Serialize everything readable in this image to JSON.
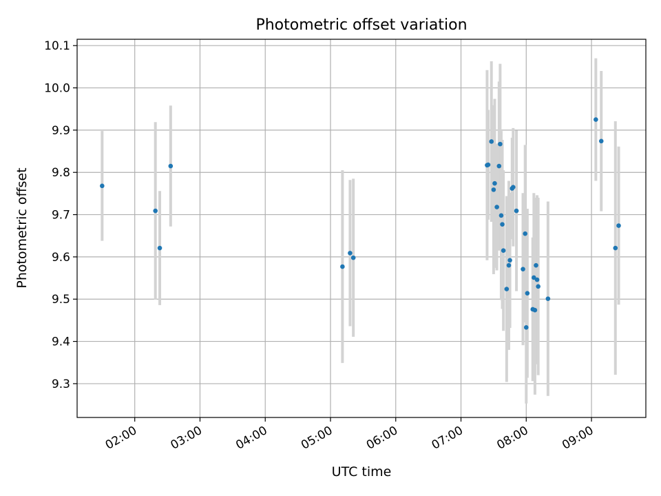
{
  "chart_data": {
    "type": "scatter",
    "title": "Photometric offset variation",
    "xlabel": "UTC time",
    "ylabel": "Photometric offset",
    "xlim": [
      "01:07",
      "09:50"
    ],
    "ylim": [
      9.22,
      10.115
    ],
    "x_ticks": [
      "02:00",
      "03:00",
      "04:00",
      "05:00",
      "06:00",
      "07:00",
      "08:00",
      "09:00"
    ],
    "y_ticks": [
      9.3,
      9.4,
      9.5,
      9.6,
      9.7,
      9.8,
      9.9,
      10.0,
      10.1
    ],
    "grid": true,
    "marker_color": "#1f77b4",
    "errorbar_color": "#d3d3d3",
    "points": [
      {
        "x": "01:30",
        "y": 9.768,
        "err": 0.13
      },
      {
        "x": "02:19",
        "y": 9.709,
        "err": 0.21
      },
      {
        "x": "02:23",
        "y": 9.621,
        "err": 0.135
      },
      {
        "x": "02:33",
        "y": 9.815,
        "err": 0.143
      },
      {
        "x": "05:11",
        "y": 9.577,
        "err": 0.228
      },
      {
        "x": "05:18",
        "y": 9.609,
        "err": 0.173
      },
      {
        "x": "05:21",
        "y": 9.598,
        "err": 0.187
      },
      {
        "x": "07:24",
        "y": 9.817,
        "err": 0.225
      },
      {
        "x": "07:25",
        "y": 9.818,
        "err": 0.13
      },
      {
        "x": "07:28",
        "y": 9.873,
        "err": 0.19
      },
      {
        "x": "07:30",
        "y": 9.759,
        "err": 0.2
      },
      {
        "x": "07:31",
        "y": 9.774,
        "err": 0.2
      },
      {
        "x": "07:33",
        "y": 9.718,
        "err": 0.15
      },
      {
        "x": "07:35",
        "y": 9.815,
        "err": 0.2
      },
      {
        "x": "07:36",
        "y": 9.867,
        "err": 0.19
      },
      {
        "x": "07:37",
        "y": 9.698,
        "err": 0.2
      },
      {
        "x": "07:38",
        "y": 9.677,
        "err": 0.2
      },
      {
        "x": "07:39",
        "y": 9.615,
        "err": 0.19
      },
      {
        "x": "07:42",
        "y": 9.524,
        "err": 0.22
      },
      {
        "x": "07:44",
        "y": 9.58,
        "err": 0.2
      },
      {
        "x": "07:45",
        "y": 9.592,
        "err": 0.16
      },
      {
        "x": "07:47",
        "y": 9.762,
        "err": 0.12
      },
      {
        "x": "07:48",
        "y": 9.765,
        "err": 0.14
      },
      {
        "x": "07:51",
        "y": 9.709,
        "err": 0.19
      },
      {
        "x": "07:57",
        "y": 9.571,
        "err": 0.18
      },
      {
        "x": "07:59",
        "y": 9.655,
        "err": 0.21
      },
      {
        "x": "08:00",
        "y": 9.433,
        "err": 0.18
      },
      {
        "x": "08:01",
        "y": 9.514,
        "err": 0.2
      },
      {
        "x": "08:06",
        "y": 9.476,
        "err": 0.17
      },
      {
        "x": "08:07",
        "y": 9.551,
        "err": 0.2
      },
      {
        "x": "08:08",
        "y": 9.474,
        "err": 0.2
      },
      {
        "x": "08:09",
        "y": 9.58,
        "err": 0.16
      },
      {
        "x": "08:10",
        "y": 9.546,
        "err": 0.2
      },
      {
        "x": "08:11",
        "y": 9.53,
        "err": 0.21
      },
      {
        "x": "08:20",
        "y": 9.501,
        "err": 0.23
      },
      {
        "x": "09:04",
        "y": 9.925,
        "err": 0.145
      },
      {
        "x": "09:09",
        "y": 9.874,
        "err": 0.166
      },
      {
        "x": "09:22",
        "y": 9.621,
        "err": 0.3
      },
      {
        "x": "09:25",
        "y": 9.674,
        "err": 0.187
      }
    ]
  }
}
